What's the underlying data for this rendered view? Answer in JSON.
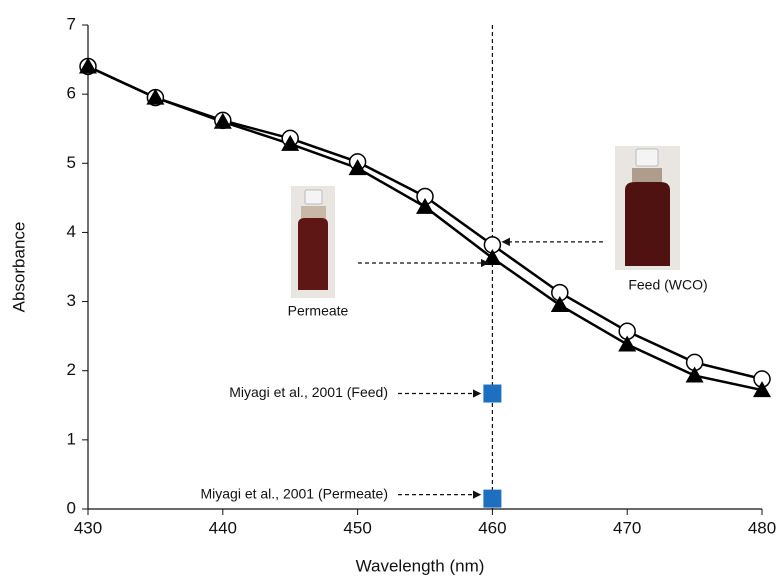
{
  "chart_data": {
    "type": "line",
    "x_label": "Wavelength (nm)",
    "y_label": "Absorbance",
    "x": [
      430,
      435,
      440,
      445,
      450,
      455,
      460,
      465,
      470,
      475,
      480
    ],
    "series": [
      {
        "color": "#000000",
        "marker": "circle",
        "values": [
          6.4,
          5.95,
          5.62,
          5.36,
          5.02,
          4.52,
          3.82,
          3.13,
          2.57,
          2.12,
          1.88
        ]
      },
      {
        "color": "#000000",
        "marker": "triangle",
        "values": [
          6.4,
          5.95,
          5.6,
          5.28,
          4.93,
          4.37,
          3.63,
          2.95,
          2.38,
          1.93,
          1.72
        ]
      }
    ],
    "points": {
      "color": "#1f6fc0",
      "marker": "square",
      "x": [
        460,
        460
      ],
      "values": [
        1.67,
        0.15
      ]
    },
    "vline": 460,
    "annotations": [
      "Permeate",
      "Feed (WCO)",
      "Miyagi et al., 2001 (Feed)",
      "Miyagi et al., 2001 (Permeate)"
    ],
    "xlim": [
      430,
      480
    ],
    "xticks": [
      430,
      440,
      450,
      460,
      470,
      480
    ],
    "ylim": [
      0,
      7
    ],
    "yticks": [
      0,
      1,
      2,
      3,
      4,
      5,
      6,
      7
    ]
  }
}
